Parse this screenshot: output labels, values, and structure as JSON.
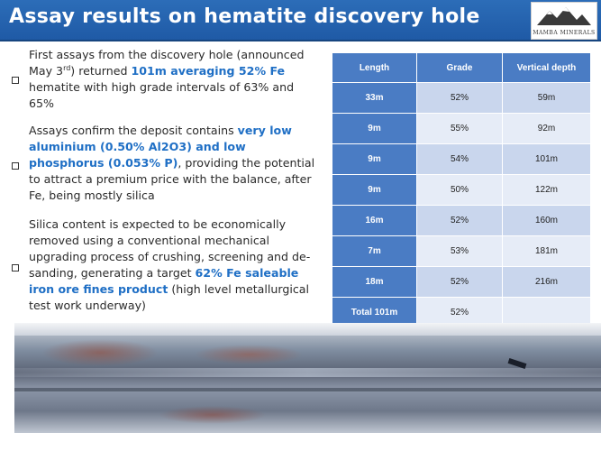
{
  "slide": {
    "title": "Assay results on hematite discovery hole",
    "logo_text": "MAMBA MINERALS"
  },
  "bullets": [
    {
      "parts": [
        {
          "text": "First assays from the discovery hole (announced May 3"
        },
        {
          "text": "rd",
          "style": "sup"
        },
        {
          "text": ") returned "
        },
        {
          "text": "101m averaging 52% Fe",
          "style": "hl"
        },
        {
          "text": " hematite with high grade intervals of 63% and 65%"
        }
      ]
    },
    {
      "parts": [
        {
          "text": "Assays confirm the deposit contains "
        },
        {
          "text": "very low aluminium (0.50% Al2O3) and low phosphorus (0.053% P)",
          "style": "hl"
        },
        {
          "text": ", providing the potential to attract a premium price with the balance, after Fe, being mostly silica"
        }
      ]
    },
    {
      "parts": [
        {
          "text": "Silica content is expected to be economically removed using a conventional mechanical upgrading process of crushing, screening and de-sanding, generating a target "
        },
        {
          "text": "62% Fe saleable iron ore fines product",
          "style": "hl"
        },
        {
          "text": " (high level metallurgical test work underway)"
        }
      ]
    }
  ],
  "table": {
    "headers": [
      "Length",
      "Grade",
      "Vertical depth"
    ],
    "rows": [
      [
        "33m",
        "52%",
        "59m"
      ],
      [
        "9m",
        "55%",
        "92m"
      ],
      [
        "9m",
        "54%",
        "101m"
      ],
      [
        "9m",
        "50%",
        "122m"
      ],
      [
        "16m",
        "52%",
        "160m"
      ],
      [
        "7m",
        "53%",
        "181m"
      ],
      [
        "18m",
        "52%",
        "216m"
      ],
      [
        "Total 101m",
        "52%",
        ""
      ]
    ]
  },
  "colors": {
    "title_bar": "#1f5aa6",
    "highlight_text": "#1f6fc5",
    "table_header": "#4a7cc4"
  }
}
